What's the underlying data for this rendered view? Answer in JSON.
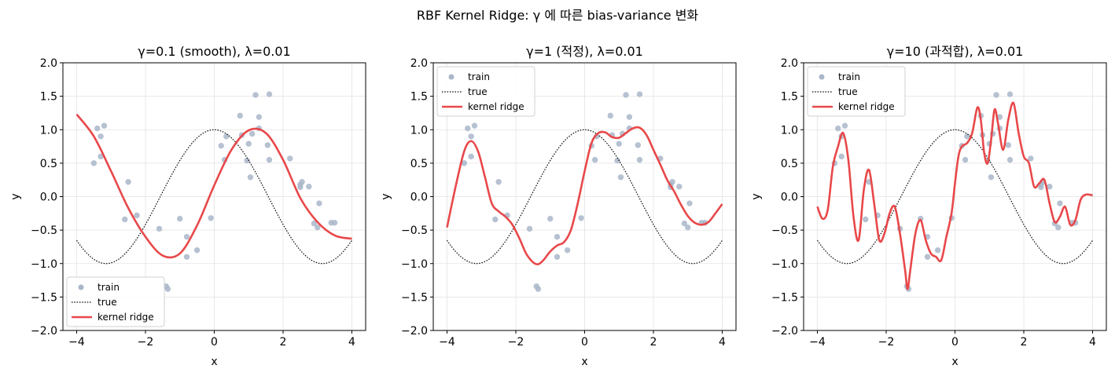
{
  "figure": {
    "suptitle": "RBF Kernel Ridge: γ 에 따른 bias-variance 변화"
  },
  "colors": {
    "train": "#a9b6c9",
    "true": "#000000",
    "fit": "#e8484a",
    "grid": "#e3e3e3"
  },
  "chart_data": [
    {
      "type": "scatter",
      "title": "γ=0.1 (smooth), λ=0.01",
      "xlabel": "x",
      "ylabel": "y",
      "xlim": [
        -4.4,
        4.4
      ],
      "ylim": [
        -2.0,
        2.0
      ],
      "xticks": [
        -4,
        -2,
        0,
        2,
        4
      ],
      "xtick_labels": [
        "−4",
        "−2",
        "0",
        "2",
        "4"
      ],
      "yticks": [
        -2.0,
        -1.5,
        -1.0,
        -0.5,
        0.0,
        0.5,
        1.0,
        1.5,
        2.0
      ],
      "ytick_labels": [
        "−2.0",
        "−1.5",
        "−1.0",
        "−0.5",
        "0.0",
        "0.5",
        "1.0",
        "1.5",
        "2.0"
      ],
      "grid": true,
      "legend_position": "lower-left",
      "legend": [
        "train",
        "true",
        "kernel ridge"
      ],
      "train": {
        "x": [
          -3.5,
          -3.4,
          -3.3,
          -3.3,
          -3.2,
          -2.6,
          -2.5,
          -2.25,
          -1.6,
          -1.4,
          -1.35,
          -1.0,
          -0.8,
          -0.8,
          -0.5,
          -0.1,
          0.2,
          0.3,
          0.35,
          0.75,
          0.8,
          0.95,
          1.0,
          1.05,
          1.1,
          1.2,
          1.3,
          1.3,
          1.55,
          1.6,
          1.6,
          2.2,
          2.5,
          2.5,
          2.55,
          2.75,
          2.9,
          3.0,
          3.05,
          3.4,
          3.5
        ],
        "y": [
          0.5,
          1.02,
          0.6,
          0.9,
          1.06,
          -0.34,
          0.22,
          -0.28,
          -0.48,
          -1.34,
          -1.38,
          -0.33,
          -0.9,
          -0.6,
          -0.8,
          -0.32,
          0.76,
          0.55,
          0.9,
          1.21,
          0.92,
          0.54,
          0.79,
          0.29,
          0.94,
          1.52,
          1.19,
          1.02,
          0.77,
          1.53,
          0.55,
          0.57,
          0.14,
          0.18,
          0.22,
          0.15,
          -0.4,
          -0.46,
          -0.1,
          -0.39,
          -0.39
        ]
      },
      "true_curve": {
        "label": "true",
        "function": "cos(x)",
        "x_range": [
          -4,
          4
        ]
      },
      "fit": {
        "label": "kernel ridge",
        "x": [
          -4.0,
          -3.5,
          -3.0,
          -2.5,
          -2.0,
          -1.5,
          -1.0,
          -0.5,
          0.0,
          0.5,
          1.0,
          1.5,
          2.0,
          2.5,
          3.0,
          3.5,
          4.0
        ],
        "y": [
          1.23,
          0.9,
          0.38,
          -0.17,
          -0.6,
          -0.88,
          -0.85,
          -0.43,
          0.17,
          0.7,
          0.99,
          0.95,
          0.55,
          -0.02,
          -0.38,
          -0.58,
          -0.63
        ]
      }
    },
    {
      "type": "scatter",
      "title": "γ=1 (적정), λ=0.01",
      "xlabel": "x",
      "ylabel": "y",
      "xlim": [
        -4.4,
        4.4
      ],
      "ylim": [
        -2.0,
        2.0
      ],
      "xticks": [
        -4,
        -2,
        0,
        2,
        4
      ],
      "xtick_labels": [
        "−4",
        "−2",
        "0",
        "2",
        "4"
      ],
      "yticks": [
        -2.0,
        -1.5,
        -1.0,
        -0.5,
        0.0,
        0.5,
        1.0,
        1.5,
        2.0
      ],
      "ytick_labels": [
        "−2.0",
        "−1.5",
        "−1.0",
        "−0.5",
        "0.0",
        "0.5",
        "1.0",
        "1.5",
        "2.0"
      ],
      "grid": true,
      "legend_position": "upper-left",
      "legend": [
        "train",
        "true",
        "kernel ridge"
      ],
      "train": {
        "x": [
          -3.5,
          -3.4,
          -3.3,
          -3.3,
          -3.2,
          -2.6,
          -2.5,
          -2.25,
          -1.6,
          -1.4,
          -1.35,
          -1.0,
          -0.8,
          -0.8,
          -0.5,
          -0.1,
          0.2,
          0.3,
          0.35,
          0.75,
          0.8,
          0.95,
          1.0,
          1.05,
          1.1,
          1.2,
          1.3,
          1.3,
          1.55,
          1.6,
          1.6,
          2.2,
          2.5,
          2.5,
          2.55,
          2.75,
          2.9,
          3.0,
          3.05,
          3.4,
          3.5
        ],
        "y": [
          0.5,
          1.02,
          0.6,
          0.9,
          1.06,
          -0.34,
          0.22,
          -0.28,
          -0.48,
          -1.34,
          -1.38,
          -0.33,
          -0.9,
          -0.6,
          -0.8,
          -0.32,
          0.76,
          0.55,
          0.9,
          1.21,
          0.92,
          0.54,
          0.79,
          0.29,
          0.94,
          1.52,
          1.19,
          1.02,
          0.77,
          1.53,
          0.55,
          0.57,
          0.14,
          0.18,
          0.22,
          0.15,
          -0.4,
          -0.46,
          -0.1,
          -0.39,
          -0.39
        ]
      },
      "true_curve": {
        "label": "true",
        "function": "cos(x)",
        "x_range": [
          -4,
          4
        ]
      },
      "fit": {
        "label": "kernel ridge",
        "x": [
          -4.0,
          -3.75,
          -3.5,
          -3.3,
          -3.1,
          -2.9,
          -2.7,
          -2.5,
          -2.3,
          -2.1,
          -1.9,
          -1.7,
          -1.5,
          -1.35,
          -1.2,
          -1.0,
          -0.8,
          -0.6,
          -0.4,
          -0.2,
          0.0,
          0.2,
          0.4,
          0.6,
          0.8,
          1.0,
          1.2,
          1.4,
          1.6,
          1.8,
          2.0,
          2.2,
          2.4,
          2.6,
          2.8,
          3.0,
          3.2,
          3.4,
          3.6,
          3.8,
          4.0
        ],
        "y": [
          -0.46,
          0.15,
          0.68,
          0.83,
          0.68,
          0.3,
          -0.1,
          -0.22,
          -0.3,
          -0.42,
          -0.62,
          -0.85,
          -0.98,
          -1.01,
          -0.95,
          -0.82,
          -0.73,
          -0.68,
          -0.5,
          -0.1,
          0.38,
          0.8,
          0.95,
          0.96,
          0.89,
          0.88,
          0.95,
          1.02,
          1.03,
          0.92,
          0.7,
          0.48,
          0.25,
          0.08,
          -0.12,
          -0.29,
          -0.39,
          -0.42,
          -0.38,
          -0.25,
          -0.11
        ]
      }
    },
    {
      "type": "scatter",
      "title": "γ=10 (과적합), λ=0.01",
      "xlabel": "x",
      "ylabel": "y",
      "xlim": [
        -4.4,
        4.4
      ],
      "ylim": [
        -2.0,
        2.0
      ],
      "xticks": [
        -4,
        -2,
        0,
        2,
        4
      ],
      "xtick_labels": [
        "−4",
        "−2",
        "0",
        "2",
        "4"
      ],
      "yticks": [
        -2.0,
        -1.5,
        -1.0,
        -0.5,
        0.0,
        0.5,
        1.0,
        1.5,
        2.0
      ],
      "ytick_labels": [
        "−2.0",
        "−1.5",
        "−1.0",
        "−0.5",
        "0.0",
        "0.5",
        "1.0",
        "1.5",
        "2.0"
      ],
      "grid": true,
      "legend_position": "upper-left",
      "legend": [
        "train",
        "true",
        "kernel ridge"
      ],
      "train": {
        "x": [
          -3.5,
          -3.4,
          -3.3,
          -3.3,
          -3.2,
          -2.6,
          -2.5,
          -2.25,
          -1.6,
          -1.4,
          -1.35,
          -1.0,
          -0.8,
          -0.8,
          -0.5,
          -0.1,
          0.2,
          0.3,
          0.35,
          0.75,
          0.8,
          0.95,
          1.0,
          1.05,
          1.1,
          1.2,
          1.3,
          1.3,
          1.55,
          1.6,
          1.6,
          2.2,
          2.5,
          2.5,
          2.55,
          2.75,
          2.9,
          3.0,
          3.05,
          3.4,
          3.5
        ],
        "y": [
          0.5,
          1.02,
          0.6,
          0.9,
          1.06,
          -0.34,
          0.22,
          -0.28,
          -0.48,
          -1.34,
          -1.38,
          -0.33,
          -0.9,
          -0.6,
          -0.8,
          -0.32,
          0.76,
          0.55,
          0.9,
          1.21,
          0.92,
          0.54,
          0.79,
          0.29,
          0.94,
          1.52,
          1.19,
          1.02,
          0.77,
          1.53,
          0.55,
          0.57,
          0.14,
          0.18,
          0.22,
          0.15,
          -0.4,
          -0.46,
          -0.1,
          -0.39,
          -0.39
        ]
      },
      "true_curve": {
        "label": "true",
        "function": "cos(x)",
        "x_range": [
          -4,
          4
        ]
      },
      "fit": {
        "label": "kernel ridge",
        "x": [
          -4.0,
          -3.85,
          -3.7,
          -3.55,
          -3.4,
          -3.25,
          -3.1,
          -2.95,
          -2.8,
          -2.65,
          -2.5,
          -2.35,
          -2.2,
          -2.05,
          -1.9,
          -1.75,
          -1.6,
          -1.45,
          -1.38,
          -1.3,
          -1.15,
          -1.0,
          -0.85,
          -0.7,
          -0.55,
          -0.4,
          -0.25,
          -0.1,
          0.0,
          0.1,
          0.2,
          0.35,
          0.5,
          0.65,
          0.75,
          0.85,
          0.95,
          1.05,
          1.15,
          1.25,
          1.4,
          1.55,
          1.7,
          1.85,
          2.0,
          2.15,
          2.3,
          2.45,
          2.6,
          2.75,
          2.9,
          3.05,
          3.2,
          3.35,
          3.5,
          3.65,
          3.8,
          4.0
        ],
        "y": [
          -0.15,
          -0.33,
          -0.2,
          0.45,
          0.75,
          0.95,
          0.55,
          -0.3,
          -0.65,
          0.1,
          0.4,
          -0.1,
          -0.65,
          -0.55,
          -0.25,
          -0.15,
          -0.55,
          -1.1,
          -1.38,
          -1.1,
          -0.55,
          -0.35,
          -0.65,
          -0.85,
          -0.9,
          -0.95,
          -0.6,
          -0.25,
          0.2,
          0.6,
          0.75,
          0.8,
          0.95,
          1.33,
          1.15,
          0.65,
          0.5,
          0.85,
          1.3,
          1.1,
          0.7,
          1.15,
          1.4,
          0.95,
          0.6,
          0.5,
          0.15,
          0.2,
          0.25,
          -0.1,
          -0.38,
          -0.3,
          -0.15,
          -0.42,
          -0.35,
          -0.05,
          0.03,
          0.02
        ]
      }
    }
  ]
}
